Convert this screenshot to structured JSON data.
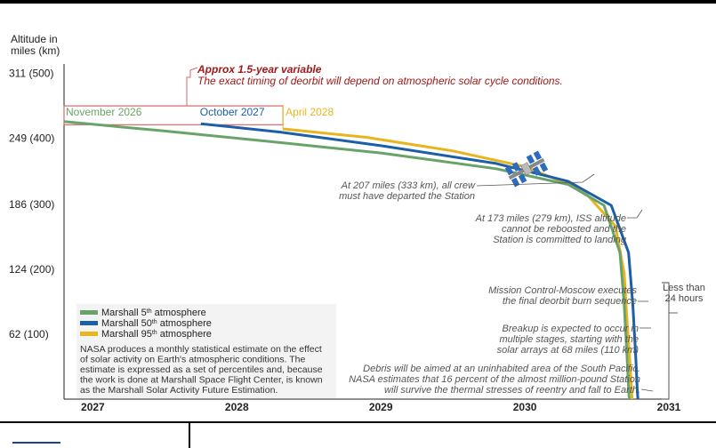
{
  "chart_data": {
    "type": "line",
    "ylabel": "Altitude in miles (km)",
    "yticks": [
      {
        "value": 311,
        "label": "311 (500)"
      },
      {
        "value": 249,
        "label": "249 (400)"
      },
      {
        "value": 186,
        "label": "186 (300)"
      },
      {
        "value": 124,
        "label": "124 (200)"
      },
      {
        "value": 62,
        "label": "62 (100)"
      }
    ],
    "xticks": [
      {
        "value": 2027,
        "label": "2027"
      },
      {
        "value": 2028,
        "label": "2028"
      },
      {
        "value": 2029,
        "label": "2029"
      },
      {
        "value": 2030,
        "label": "2030"
      },
      {
        "value": 2031,
        "label": "2031"
      }
    ],
    "xlim": [
      2026.8,
      2031.0
    ],
    "ylim": [
      0,
      320
    ],
    "series": [
      {
        "name": "Marshall 5th atmosphere",
        "color": "#6aa36a",
        "start_label": "November 2026",
        "x": [
          2026.8,
          2027.5,
          2028.3,
          2029.0,
          2029.8,
          2030.3,
          2030.55,
          2030.66,
          2030.69,
          2030.71,
          2030.72,
          2030.725
        ],
        "y": [
          265,
          256,
          245,
          235,
          220,
          205,
          185,
          140,
          90,
          40,
          10,
          0
        ]
      },
      {
        "name": "Marshall 50th atmosphere",
        "color": "#1c5ea8",
        "start_label": "October 2027",
        "x": [
          2027.75,
          2028.3,
          2029.0,
          2029.8,
          2030.3,
          2030.6,
          2030.72,
          2030.75,
          2030.77,
          2030.78,
          2030.785
        ],
        "y": [
          263,
          255,
          242,
          225,
          208,
          185,
          140,
          90,
          40,
          10,
          0
        ]
      },
      {
        "name": "Marshall 95th atmosphere",
        "color": "#e8b521",
        "start_label": "April 2028",
        "x": [
          2028.32,
          2028.9,
          2029.5,
          2030.0,
          2030.4,
          2030.63,
          2030.69,
          2030.71,
          2030.73,
          2030.74,
          2030.745
        ],
        "y": [
          258,
          250,
          237,
          222,
          200,
          165,
          120,
          75,
          35,
          10,
          0
        ]
      }
    ],
    "variable_note_title": "Approx 1.5-year variable",
    "variable_note_text": "The exact timing of deorbit will depend on atmospheric solar cycle conditions.",
    "annotations": {
      "crew": [
        "At 207 miles (333 km), all crew",
        "must have departed the Station"
      ],
      "reboost": [
        "At 173 miles (279 km), ISS altitude",
        "cannot be reboosted and the",
        "Station is committed to landing"
      ],
      "mission": [
        "Mission Control-Moscow executes",
        "the final deorbit burn sequence"
      ],
      "breakup": [
        "Breakup is expected to occur in",
        "multiple stages, starting with the",
        "solar arrays at 68 miles (110 km)"
      ],
      "debris": [
        "Debris will be aimed at an uninhabited area of the South Pacific.",
        "NASA estimates that 16 percent of the almost million-pound Station",
        "will survive the thermal stresses of reentry and fall to Earth."
      ],
      "less_than": [
        "Less than",
        "24 hours"
      ]
    },
    "legend_placement": "bottom-left",
    "legend_note": [
      "NASA produces a monthly statistical estimate on the effect",
      "of solar activity on Earth's atmospheric conditions. The",
      "estimate is expressed as a set of percentiles and, because",
      "the work is done at Marshall Space Flight Center, is known",
      "as the Marshall Solar Activity Future Estimation."
    ],
    "legend_entries": [
      {
        "label": "Marshall 5",
        "sup": "th",
        "suffix": " atmosphere",
        "color": "#6aa36a"
      },
      {
        "label": "Marshall 50",
        "sup": "th",
        "suffix": " atmosphere",
        "color": "#1c5ea8"
      },
      {
        "label": "Marshall 95",
        "sup": "th",
        "suffix": " atmosphere",
        "color": "#e8b521"
      }
    ],
    "colors": {
      "note_red": "#a01818",
      "box_red": "#d46a6a",
      "axis": "#222222",
      "note_gray": "#555555"
    },
    "icons": [
      "iss-station-icon"
    ]
  }
}
